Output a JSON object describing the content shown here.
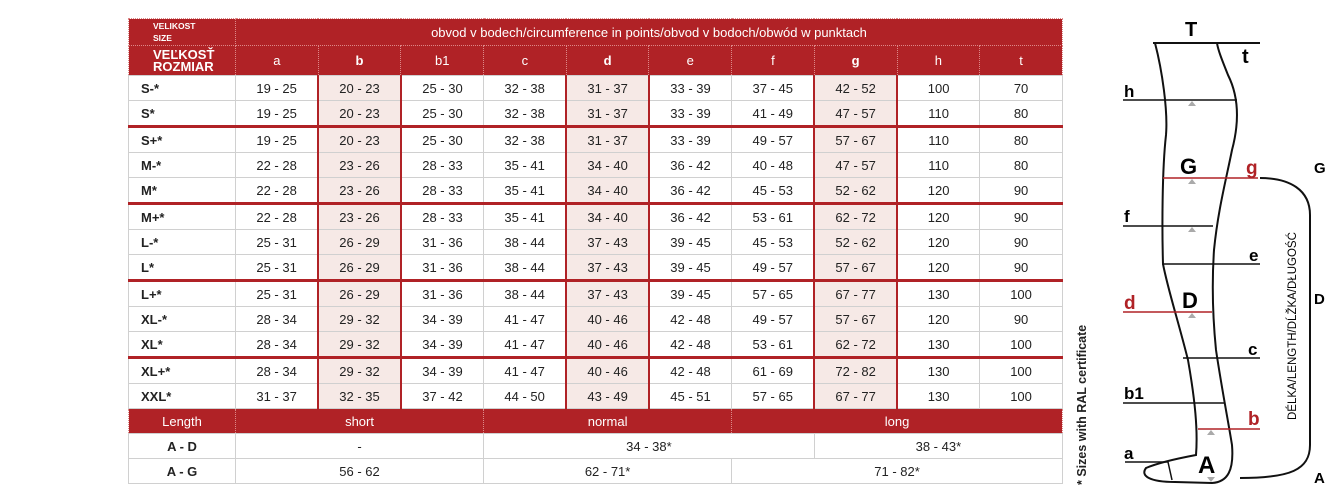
{
  "table": {
    "size_header": [
      "VELIKOST",
      "SIZE",
      "VEĽKOSŤ",
      "ROZMIAR"
    ],
    "circumference_header": "obvod v bodech/circumference in points/obvod v bodoch/obwód w punktach",
    "columns": [
      "a",
      "b",
      "b1",
      "c",
      "d",
      "e",
      "f",
      "g",
      "h",
      "t"
    ],
    "highlighted_columns": [
      "b",
      "d",
      "g"
    ],
    "highlight_color": "#b02226",
    "rows": [
      {
        "size": "S-*",
        "values": [
          "19 - 25",
          "20 - 23",
          "25 - 30",
          "32 - 38",
          "31 - 37",
          "33 - 39",
          "37 - 45",
          "42 - 52",
          "100",
          "70"
        ]
      },
      {
        "size": "S*",
        "values": [
          "19 - 25",
          "20 - 23",
          "25 - 30",
          "32 - 38",
          "31 - 37",
          "33 - 39",
          "41 - 49",
          "47 - 57",
          "110",
          "80"
        ],
        "group_end": true
      },
      {
        "size": "S+*",
        "values": [
          "19 - 25",
          "20 - 23",
          "25 - 30",
          "32 - 38",
          "31 - 37",
          "33 - 39",
          "49 - 57",
          "57 - 67",
          "110",
          "80"
        ]
      },
      {
        "size": "M-*",
        "values": [
          "22 - 28",
          "23 - 26",
          "28 - 33",
          "35 - 41",
          "34 - 40",
          "36 - 42",
          "40 - 48",
          "47 - 57",
          "110",
          "80"
        ]
      },
      {
        "size": "M*",
        "values": [
          "22 - 28",
          "23 - 26",
          "28 - 33",
          "35 - 41",
          "34 - 40",
          "36 - 42",
          "45 - 53",
          "52 - 62",
          "120",
          "90"
        ],
        "group_end": true
      },
      {
        "size": "M+*",
        "values": [
          "22 - 28",
          "23 - 26",
          "28 - 33",
          "35 - 41",
          "34 - 40",
          "36 - 42",
          "53 - 61",
          "62 - 72",
          "120",
          "90"
        ]
      },
      {
        "size": "L-*",
        "values": [
          "25 - 31",
          "26 - 29",
          "31 - 36",
          "38 - 44",
          "37 - 43",
          "39 - 45",
          "45 - 53",
          "52 - 62",
          "120",
          "90"
        ]
      },
      {
        "size": "L*",
        "values": [
          "25 - 31",
          "26 - 29",
          "31 - 36",
          "38 - 44",
          "37 - 43",
          "39 - 45",
          "49 - 57",
          "57 - 67",
          "120",
          "90"
        ],
        "group_end": true
      },
      {
        "size": "L+*",
        "values": [
          "25 - 31",
          "26 - 29",
          "31 - 36",
          "38 - 44",
          "37 - 43",
          "39 - 45",
          "57 - 65",
          "67 - 77",
          "130",
          "100"
        ]
      },
      {
        "size": "XL-*",
        "values": [
          "28 - 34",
          "29 - 32",
          "34 - 39",
          "41 - 47",
          "40 - 46",
          "42 - 48",
          "49 - 57",
          "57 - 67",
          "120",
          "90"
        ]
      },
      {
        "size": "XL*",
        "values": [
          "28 - 34",
          "29 - 32",
          "34 - 39",
          "41 - 47",
          "40 - 46",
          "42 - 48",
          "53 - 61",
          "62 - 72",
          "130",
          "100"
        ],
        "group_end": true
      },
      {
        "size": "XL+*",
        "values": [
          "28 - 34",
          "29 - 32",
          "34 - 39",
          "41 - 47",
          "40 - 46",
          "42 - 48",
          "61 - 69",
          "72 - 82",
          "130",
          "100"
        ]
      },
      {
        "size": "XXL*",
        "values": [
          "31 - 37",
          "32 - 35",
          "37 - 42",
          "44 - 50",
          "43 - 49",
          "45 - 51",
          "57 - 65",
          "67 - 77",
          "130",
          "100"
        ]
      }
    ],
    "length": {
      "header": [
        "Length",
        "short",
        "normal",
        "long"
      ],
      "rows": [
        {
          "label": "A - D",
          "values": [
            "-",
            "34 - 38*",
            "38 - 43*"
          ]
        },
        {
          "label": "A - G",
          "values": [
            "56 - 62",
            "62 - 71*",
            "71 - 82*"
          ]
        }
      ]
    }
  },
  "footnote": "* Sizes with RAL certificate",
  "diagram": {
    "labels": {
      "T": "T",
      "t": "t",
      "h": "h",
      "G": "G",
      "g": "g",
      "f": "f",
      "e": "e",
      "d": "d",
      "D": "D",
      "c": "c",
      "b1": "b1",
      "b": "b",
      "a": "a",
      "A": "A"
    },
    "bracket_labels": {
      "top": "G",
      "middle": "D",
      "bottom": "A"
    },
    "length_caption": "DÉLKA/LENGTH/DĹŽKA/DŁUGOŚĆ",
    "red_color": "#b02226"
  }
}
